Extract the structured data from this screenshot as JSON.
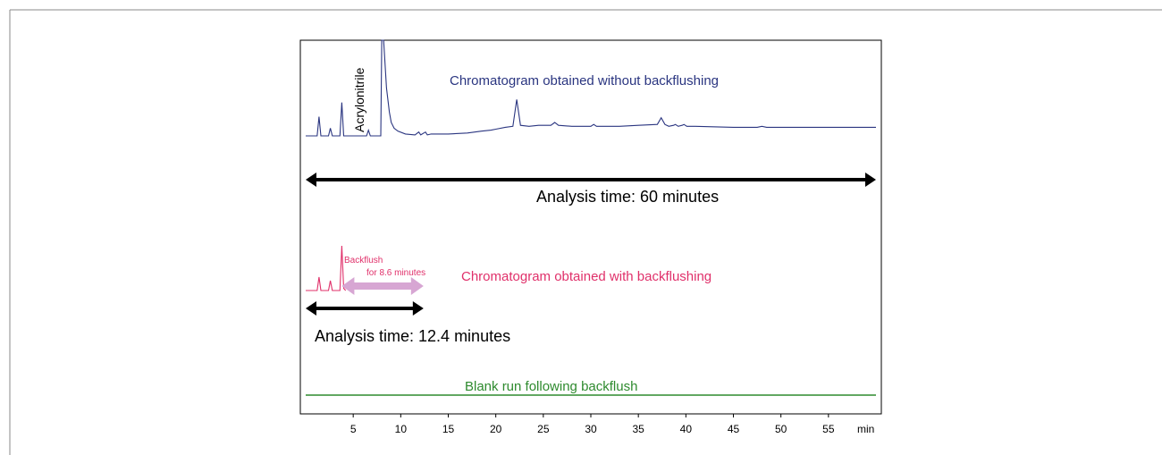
{
  "chart_data": {
    "type": "line",
    "xlabel": "min",
    "xlim": [
      0,
      60
    ],
    "x_ticks": [
      5,
      10,
      15,
      20,
      25,
      30,
      35,
      40,
      45,
      50,
      55
    ],
    "annotations": {
      "peak_label": "Acrylonitrile",
      "trace_without_label": "Chromatogram obtained without backflushing",
      "analysis_60": "Analysis time: 60 minutes",
      "backflush_line1": "Backflush",
      "backflush_line2": "for 8.6 minutes",
      "trace_with_label": "Chromatogram obtained with backflushing",
      "analysis_12": "Analysis time: 12.4 minutes",
      "blank_label": "Blank run following backflush"
    },
    "series": [
      {
        "color": "#2a3580",
        "x": [
          0,
          1.2,
          1.4,
          1.6,
          2.4,
          2.6,
          2.8,
          3.6,
          3.8,
          4.0,
          6.4,
          6.6,
          6.8,
          7.9,
          8.0,
          8.2,
          8.5,
          8.8,
          9.0,
          9.3,
          9.7,
          10.5,
          11.5,
          11.9,
          12.1,
          12.6,
          12.8,
          13.2,
          15,
          17,
          18.5,
          19.5,
          20,
          21,
          21.8,
          22.2,
          22.6,
          23.5,
          24.5,
          25.8,
          26.2,
          26.6,
          28,
          30.0,
          30.3,
          30.6,
          33,
          35,
          37.0,
          37.4,
          37.8,
          38.2,
          38.7,
          38.9,
          39.2,
          39.6,
          39.8,
          40.1,
          41,
          45,
          47.5,
          48,
          48.5,
          52,
          56,
          60
        ],
        "y": [
          0,
          0,
          0.2,
          0,
          0,
          0.08,
          0,
          0,
          0.35,
          0,
          0,
          0.06,
          0,
          0,
          1.0,
          1.0,
          0.5,
          0.25,
          0.14,
          0.08,
          0.05,
          0.02,
          0.01,
          0.04,
          0.01,
          0.04,
          0.01,
          0.02,
          0.02,
          0.03,
          0.05,
          0.06,
          0.07,
          0.09,
          0.1,
          0.38,
          0.11,
          0.1,
          0.11,
          0.11,
          0.14,
          0.11,
          0.1,
          0.1,
          0.12,
          0.1,
          0.1,
          0.11,
          0.12,
          0.19,
          0.12,
          0.1,
          0.11,
          0.12,
          0.1,
          0.11,
          0.12,
          0.1,
          0.1,
          0.09,
          0.09,
          0.1,
          0.09,
          0.09,
          0.09,
          0.09
        ]
      },
      {
        "color": "#e0306a",
        "x": [
          0,
          1.2,
          1.4,
          1.6,
          2.4,
          2.6,
          2.8,
          3.6,
          3.8,
          4.0,
          4.2
        ],
        "y": [
          0,
          0,
          0.3,
          0,
          0,
          0.22,
          0,
          0,
          1.0,
          0.05,
          0
        ]
      },
      {
        "color": "#2e8a2e",
        "x": [
          0,
          60
        ],
        "y": [
          0,
          0
        ]
      }
    ],
    "arrows": [
      {
        "label": "Analysis time: 60 minutes",
        "x": [
          0,
          60
        ]
      },
      {
        "label": "Backflush for 8.6 minutes",
        "x": [
          3.8,
          12.4
        ]
      },
      {
        "label": "Analysis time: 12.4 minutes",
        "x": [
          0,
          12.4
        ]
      }
    ]
  }
}
